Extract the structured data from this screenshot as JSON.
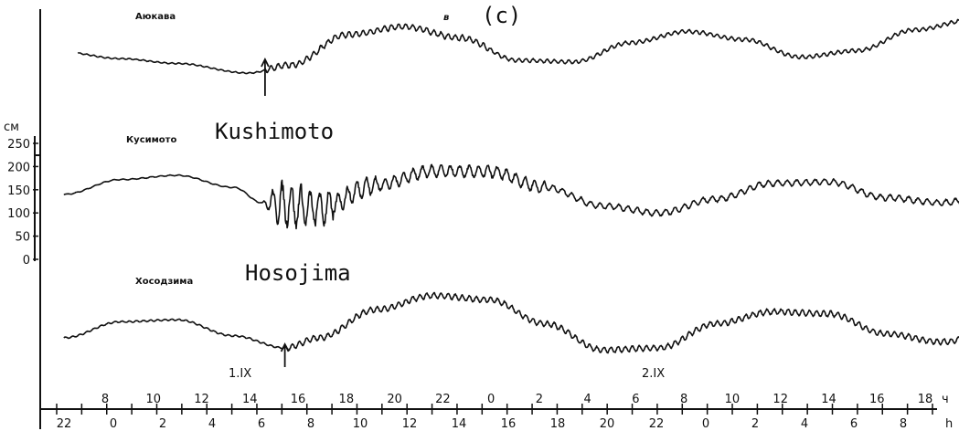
{
  "figure": {
    "panel_letter": "в",
    "panel_label": "(c)"
  },
  "chart_data": {
    "type": "line",
    "title": "",
    "y_unit": "см",
    "y_ticks": [
      0,
      50,
      100,
      150,
      200,
      250
    ],
    "ylim": [
      0,
      250
    ],
    "x_unit": "ч",
    "x_unit_alt": "h",
    "x_ticks_upper": [
      "8",
      "10",
      "12",
      "14",
      "16",
      "18",
      "20",
      "22",
      "0",
      "2",
      "4",
      "6",
      "8",
      "10",
      "12",
      "14",
      "16",
      "18"
    ],
    "x_ticks_lower": [
      "22",
      "0",
      "2",
      "4",
      "6",
      "8",
      "10",
      "12",
      "14",
      "16",
      "18",
      "20",
      "22",
      "0",
      "2",
      "4",
      "6",
      "8"
    ],
    "date_marks": [
      "1.IX",
      "2.IX"
    ],
    "series": [
      {
        "name": "Аюкава",
        "name_en": "",
        "arrival_hour": 4.1,
        "baseline": 0.14,
        "mean": [
          [
            -3,
            0.13
          ],
          [
            -1,
            0.09
          ],
          [
            1,
            0.06
          ],
          [
            3.5,
            0.0
          ],
          [
            5,
            0.05
          ],
          [
            7,
            0.24
          ],
          [
            9,
            0.29
          ],
          [
            11,
            0.22
          ],
          [
            13,
            0.08
          ],
          [
            15,
            0.07
          ],
          [
            17,
            0.19
          ],
          [
            19,
            0.26
          ],
          [
            21,
            0.21
          ],
          [
            23,
            0.1
          ],
          [
            25,
            0.14
          ],
          [
            27,
            0.27
          ],
          [
            29,
            0.33
          ]
        ],
        "wave_amp": 0.012,
        "wave_period_h": 0.25
      },
      {
        "name": "Кусимото",
        "name_en": "Kushimoto",
        "arrival_hour": 4.0,
        "mean": [
          [
            -3,
            140
          ],
          [
            -1,
            172
          ],
          [
            1,
            181
          ],
          [
            3,
            155
          ],
          [
            4,
            122
          ],
          [
            6,
            110
          ],
          [
            8,
            160
          ],
          [
            10,
            190
          ],
          [
            12,
            189
          ],
          [
            14,
            155
          ],
          [
            16,
            115
          ],
          [
            18,
            100
          ],
          [
            20,
            130
          ],
          [
            22,
            164
          ],
          [
            24,
            167
          ],
          [
            26,
            133
          ],
          [
            28,
            122
          ],
          [
            30,
            145
          ]
        ],
        "wave_amp_max": 42,
        "wave_period_h": 0.33
      },
      {
        "name": "Хосодзима",
        "name_en": "Hosojima",
        "arrival_hour": 4.8,
        "mean": [
          [
            -3,
            0.0
          ],
          [
            -1,
            0.08
          ],
          [
            1,
            0.09
          ],
          [
            3,
            0.01
          ],
          [
            4.8,
            -0.05
          ],
          [
            6,
            0.0
          ],
          [
            8,
            0.14
          ],
          [
            10,
            0.21
          ],
          [
            12,
            0.19
          ],
          [
            14,
            0.07
          ],
          [
            16,
            -0.06
          ],
          [
            18,
            -0.05
          ],
          [
            20,
            0.07
          ],
          [
            22,
            0.13
          ],
          [
            24,
            0.12
          ],
          [
            26,
            0.02
          ],
          [
            28,
            -0.02
          ],
          [
            30,
            0.04
          ]
        ],
        "wave_amp": 0.012,
        "wave_period_h": 0.25
      }
    ],
    "grid": false,
    "legend": "none"
  }
}
